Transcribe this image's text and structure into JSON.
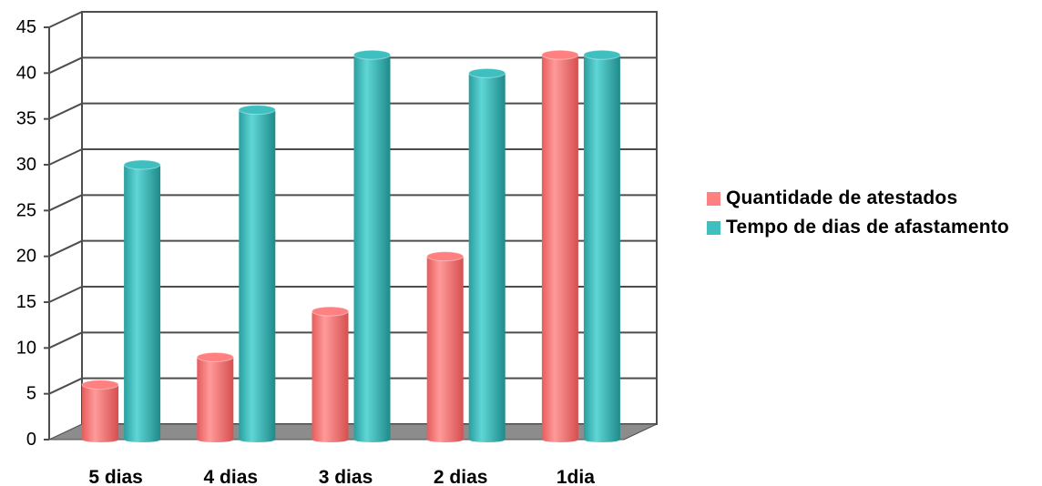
{
  "chart_data": {
    "type": "bar",
    "categories": [
      "5 dias",
      "4 dias",
      "3 dias",
      "2 dias",
      "1dia"
    ],
    "series": [
      {
        "name": "Quantidade de atestados",
        "values": [
          6,
          9,
          14,
          20,
          42
        ]
      },
      {
        "name": "Tempo de dias de afastamento",
        "values": [
          30,
          36,
          42,
          40,
          42
        ]
      }
    ],
    "ylim": [
      0,
      45
    ],
    "yticks": [
      "0",
      "5",
      "10",
      "15",
      "20",
      "25",
      "30",
      "35",
      "40",
      "45"
    ],
    "grid": true,
    "legend_position": "right",
    "colors": {
      "series0": "#ff8080",
      "series1": "#3fbfbf",
      "floor": "#8c8c8c",
      "grid": "#4d4d4d"
    }
  }
}
